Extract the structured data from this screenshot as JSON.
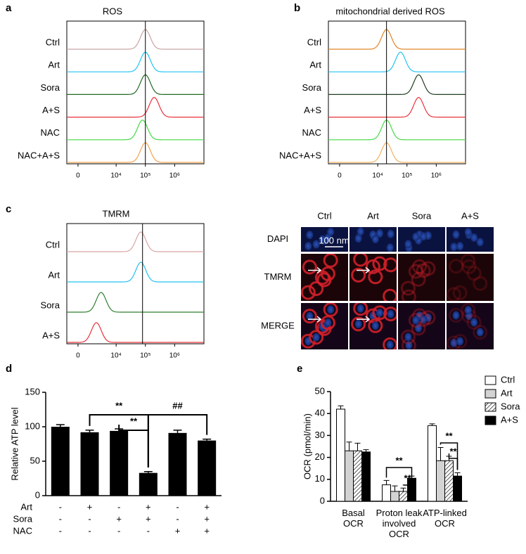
{
  "panel_labels": [
    "a",
    "b",
    "c",
    "d",
    "e"
  ],
  "chart_data": [
    {
      "type": "flow",
      "title": "ROS",
      "categories": [
        "Ctrl",
        "Art",
        "Sora",
        "A+S",
        "NAC",
        "NAC+A+S"
      ],
      "colors": [
        "#c9a3a3",
        "#22c4ef",
        "#1f6a1f",
        "#e8323c",
        "#44da44",
        "#f2a24e"
      ],
      "values": [
        100000,
        100000,
        100000,
        200000,
        80000,
        100000
      ],
      "reference_line": 100000,
      "xscale": "biexponential",
      "xlim": [
        -1000,
        10000000
      ],
      "xticks": [
        0,
        {
          "value": 10000,
          "label": "10⁴"
        },
        {
          "value": 100000,
          "label": "10⁵"
        },
        {
          "value": 1000000,
          "label": "10⁶"
        }
      ]
    },
    {
      "type": "flow",
      "title": "mitochondrial derived ROS",
      "categories": [
        "Ctrl",
        "Art",
        "Sora",
        "A+S",
        "NAC",
        "NAC+A+S"
      ],
      "colors": [
        "#e08424",
        "#22c4ef",
        "#1f3f1f",
        "#e8323c",
        "#44da44",
        "#f2b060"
      ],
      "values": [
        20000,
        60000,
        250000,
        250000,
        20000,
        20000
      ],
      "reference_line": 20000,
      "xscale": "biexponential",
      "xlim": [
        -1000,
        10000000
      ],
      "xticks": [
        0,
        {
          "value": 10000,
          "label": "10⁴"
        },
        {
          "value": 100000,
          "label": "10⁵"
        },
        {
          "value": 1000000,
          "label": "10⁶"
        }
      ]
    },
    {
      "type": "flow",
      "title": "TMRM",
      "categories": [
        "Ctrl",
        "Art",
        "Sora",
        "A+S"
      ],
      "colors": [
        "#d8a4a4",
        "#22c0ef",
        "#2f7f2f",
        "#e8323c"
      ],
      "values": [
        70000,
        70000,
        3000,
        2000
      ],
      "reference_line": 80000,
      "xscale": "biexponential",
      "xlim": [
        -1000,
        10000000
      ],
      "xticks": [
        0,
        {
          "value": 10000,
          "label": "10⁴"
        },
        {
          "value": 100000,
          "label": "10⁵"
        },
        {
          "value": 1000000,
          "label": "10⁶"
        }
      ]
    },
    {
      "type": "bar",
      "ylabel": "Relative  ATP level",
      "values": [
        100,
        92,
        94,
        33,
        91,
        80
      ],
      "errors": [
        3,
        3,
        3,
        2,
        4,
        2
      ],
      "color": "#000000",
      "ylim": [
        0,
        150
      ],
      "yticks": [
        0,
        50,
        100,
        150
      ],
      "treatments": [
        {
          "name": "Art",
          "marks": [
            "-",
            "+",
            "-",
            "+",
            "-",
            "+"
          ]
        },
        {
          "name": "Sora",
          "marks": [
            "-",
            "-",
            "+",
            "+",
            "-",
            "+"
          ]
        },
        {
          "name": "NAC",
          "marks": [
            "-",
            "-",
            "-",
            "-",
            "+",
            "+"
          ]
        }
      ],
      "annotations": [
        "**",
        "**",
        "##"
      ]
    },
    {
      "type": "grouped-bar",
      "ylabel": "OCR (pmol/min)",
      "categories": [
        "Basal\nOCR",
        "Proton leak\ninvolved\nOCR",
        "ATP-linked\nOCR"
      ],
      "series": [
        {
          "name": "Ctrl",
          "color": "#ffffff",
          "values": [
            42,
            7.5,
            34.5
          ],
          "errors": [
            1.5,
            2,
            0.8
          ]
        },
        {
          "name": "Art",
          "color": "#d3d3d3",
          "values": [
            23,
            4.5,
            18.5
          ],
          "errors": [
            4,
            2.5,
            6
          ]
        },
        {
          "name": "Sora",
          "color": "#ffffff",
          "hatch": true,
          "values": [
            23,
            4.5,
            18.5
          ],
          "errors": [
            3.5,
            1.5,
            2
          ]
        },
        {
          "name": "A+S",
          "color": "#000000",
          "values": [
            22.5,
            10.5,
            11.5
          ],
          "errors": [
            1,
            1,
            1.5
          ]
        }
      ],
      "ylim": [
        0,
        50
      ],
      "yticks": [
        0,
        10,
        20,
        30,
        40,
        50
      ],
      "legend": "right",
      "annotations": [
        "**",
        "**",
        "**",
        "**"
      ]
    }
  ],
  "micrograph": {
    "columns": [
      "Ctrl",
      "Art",
      "Sora",
      "A+S"
    ],
    "rows": [
      "DAPI",
      "TMRM",
      "MERGE"
    ],
    "scale_bar": "100 nm"
  }
}
